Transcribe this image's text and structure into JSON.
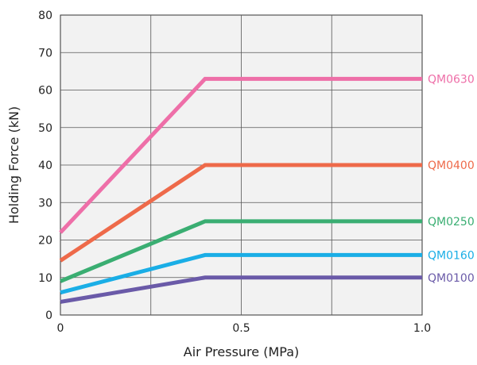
{
  "chart_data": {
    "type": "line",
    "xlabel": "Air Pressure (MPa)",
    "ylabel": "Holding Force (kN)",
    "xlim": [
      0,
      1.0
    ],
    "ylim": [
      0,
      80
    ],
    "x_ticks": [
      0,
      0.25,
      0.5,
      0.75,
      1.0
    ],
    "x_tick_labels": [
      "0",
      "",
      "0.5",
      "",
      "1.0"
    ],
    "y_ticks": [
      0,
      10,
      20,
      30,
      40,
      50,
      60,
      70,
      80
    ],
    "y_tick_labels": [
      "0",
      "10",
      "20",
      "30",
      "40",
      "50",
      "60",
      "70",
      "80"
    ],
    "grid": true,
    "plot_background": "#f2f2f2",
    "legend": "series labels at right end of each line",
    "series": [
      {
        "name": "QM0630",
        "color": "#ee6fa8",
        "x": [
          0,
          0.4,
          1.0
        ],
        "y": [
          22,
          63,
          63
        ]
      },
      {
        "name": "QM0400",
        "color": "#ee6a4a",
        "x": [
          0,
          0.4,
          1.0
        ],
        "y": [
          14.5,
          40,
          40
        ]
      },
      {
        "name": "QM0250",
        "color": "#3aae72",
        "x": [
          0,
          0.4,
          1.0
        ],
        "y": [
          9,
          25,
          25
        ]
      },
      {
        "name": "QM0160",
        "color": "#1aaee6",
        "x": [
          0,
          0.4,
          1.0
        ],
        "y": [
          6,
          16,
          16
        ]
      },
      {
        "name": "QM0100",
        "color": "#6a5aa8",
        "x": [
          0,
          0.4,
          1.0
        ],
        "y": [
          3.5,
          10,
          10
        ]
      }
    ]
  }
}
